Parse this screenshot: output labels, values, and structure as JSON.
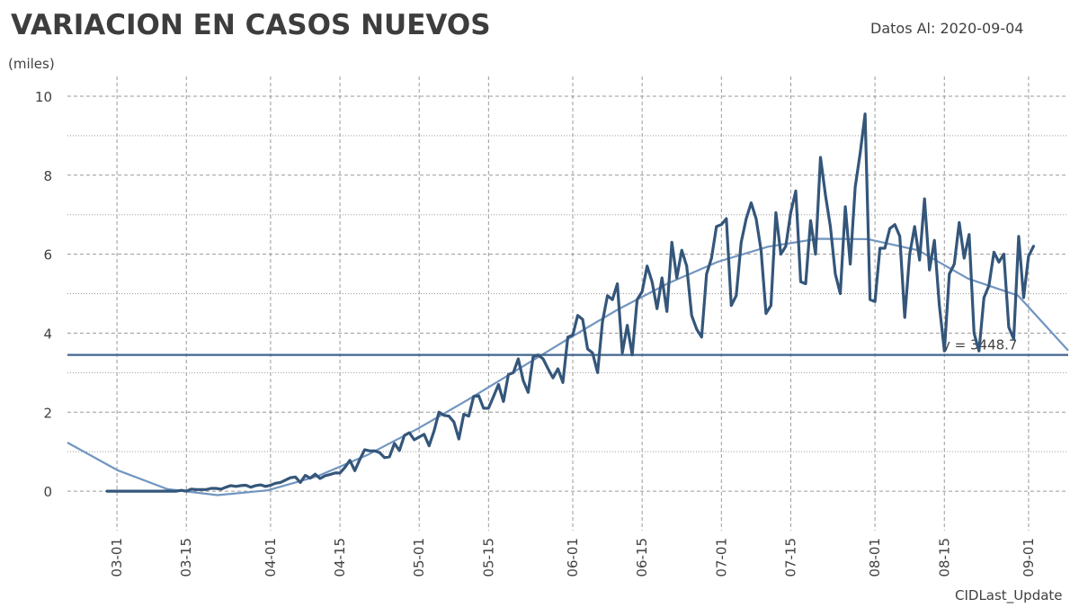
{
  "header": {
    "title": "VARIACION EN CASOS NUEVOS",
    "date_label": "Datos Al: 2020-09-04",
    "unit_label": "(miles)",
    "source_label": "CIDLast_Update"
  },
  "colors": {
    "series": "#34567a",
    "trend": "#7195c0",
    "reference": "#41668f",
    "grid": "#9a9a9a",
    "text": "#404040"
  },
  "chart_data": {
    "type": "line",
    "x_tick_labels": [
      "03-01",
      "03-15",
      "04-01",
      "04-15",
      "05-01",
      "05-15",
      "06-01",
      "06-15",
      "07-01",
      "07-15",
      "08-01",
      "08-15",
      "09-01"
    ],
    "x_ticks": [
      "2020-03-01",
      "2020-03-15",
      "2020-04-01",
      "2020-04-15",
      "2020-05-01",
      "2020-05-15",
      "2020-06-01",
      "2020-06-15",
      "2020-07-01",
      "2020-07-15",
      "2020-08-01",
      "2020-08-15",
      "2020-09-01"
    ],
    "xlim": [
      "2020-02-20",
      "2020-09-09"
    ],
    "ylim": [
      -1,
      10.5
    ],
    "y_ticks": [
      0,
      2,
      4,
      6,
      8,
      10
    ],
    "grid": true,
    "series": [
      {
        "role": "daily_new_cases",
        "start_date": "2020-02-28",
        "values": [
          0,
          0,
          0,
          0,
          0,
          0,
          0,
          0,
          0,
          0,
          0,
          0,
          0,
          0,
          0,
          0.02,
          0,
          0.05,
          0.04,
          0.04,
          0.04,
          0.07,
          0.07,
          0.05,
          0.1,
          0.14,
          0.12,
          0.14,
          0.15,
          0.1,
          0.14,
          0.16,
          0.12,
          0.15,
          0.2,
          0.22,
          0.28,
          0.34,
          0.36,
          0.22,
          0.4,
          0.33,
          0.43,
          0.32,
          0.39,
          0.42,
          0.46,
          0.46,
          0.6,
          0.78,
          0.52,
          0.8,
          1.05,
          1.02,
          1.02,
          0.98,
          0.85,
          0.87,
          1.21,
          1.03,
          1.41,
          1.48,
          1.3,
          1.37,
          1.44,
          1.15,
          1.52,
          2.0,
          1.92,
          1.9,
          1.75,
          1.32,
          1.95,
          1.9,
          2.4,
          2.42,
          2.1,
          2.1,
          2.4,
          2.7,
          2.27,
          2.95,
          3.0,
          3.35,
          2.8,
          2.5,
          3.4,
          3.45,
          3.35,
          3.1,
          2.87,
          3.1,
          2.75,
          3.9,
          3.95,
          4.45,
          4.35,
          3.6,
          3.5,
          3.0,
          4.3,
          4.95,
          4.85,
          5.25,
          3.5,
          4.2,
          3.45,
          4.85,
          5.05,
          5.7,
          5.3,
          4.62,
          5.4,
          4.55,
          6.3,
          5.4,
          6.1,
          5.7,
          4.45,
          4.1,
          3.9,
          5.5,
          5.9,
          6.7,
          6.75,
          6.9,
          4.7,
          4.95,
          6.3,
          6.9,
          7.3,
          6.9,
          6.1,
          4.5,
          4.7,
          7.05,
          6.0,
          6.2,
          7.05,
          7.6,
          5.3,
          5.25,
          6.85,
          6.0,
          8.45,
          7.5,
          6.7,
          5.5,
          5.0,
          7.2,
          5.75,
          7.7,
          8.55,
          9.55,
          4.85,
          4.8,
          6.15,
          6.15,
          6.65,
          6.75,
          6.45,
          4.4,
          6.0,
          6.7,
          5.85,
          7.4,
          5.6,
          6.35,
          4.7,
          3.55,
          5.5,
          5.75,
          6.8,
          5.9,
          6.5,
          4.0,
          3.55,
          4.9,
          5.2,
          6.05,
          5.8,
          6.0,
          4.15,
          3.85,
          6.45,
          4.9,
          5.95,
          6.2
        ]
      },
      {
        "role": "trend",
        "start_date": "2020-02-20",
        "values": [
          1.23,
          0.53,
          0.05,
          -0.1,
          0.02,
          0.38,
          0.92,
          1.58,
          2.31,
          3.08,
          3.85,
          4.6,
          5.26,
          5.81,
          6.19,
          6.39,
          6.38,
          6.1,
          5.38,
          4.95,
          3.56
        ]
      },
      {
        "role": "reference",
        "y": 3448.7,
        "y_thousands": 3.4487,
        "label": "y = 3448.7"
      }
    ]
  }
}
